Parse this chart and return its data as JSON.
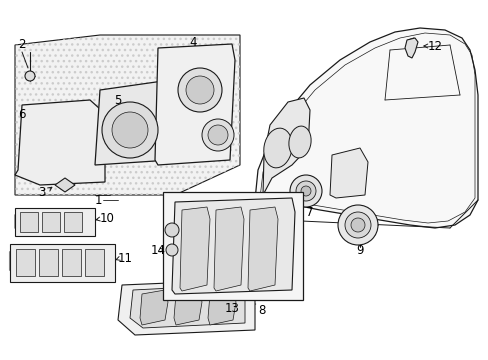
{
  "bg_color": "#ffffff",
  "line_color": "#1a1a1a",
  "fig_width": 4.89,
  "fig_height": 3.6,
  "dpi": 100,
  "gray_fill": "#e8e8e8",
  "light_gray": "#f0f0f0",
  "hatch_color": "#cccccc"
}
